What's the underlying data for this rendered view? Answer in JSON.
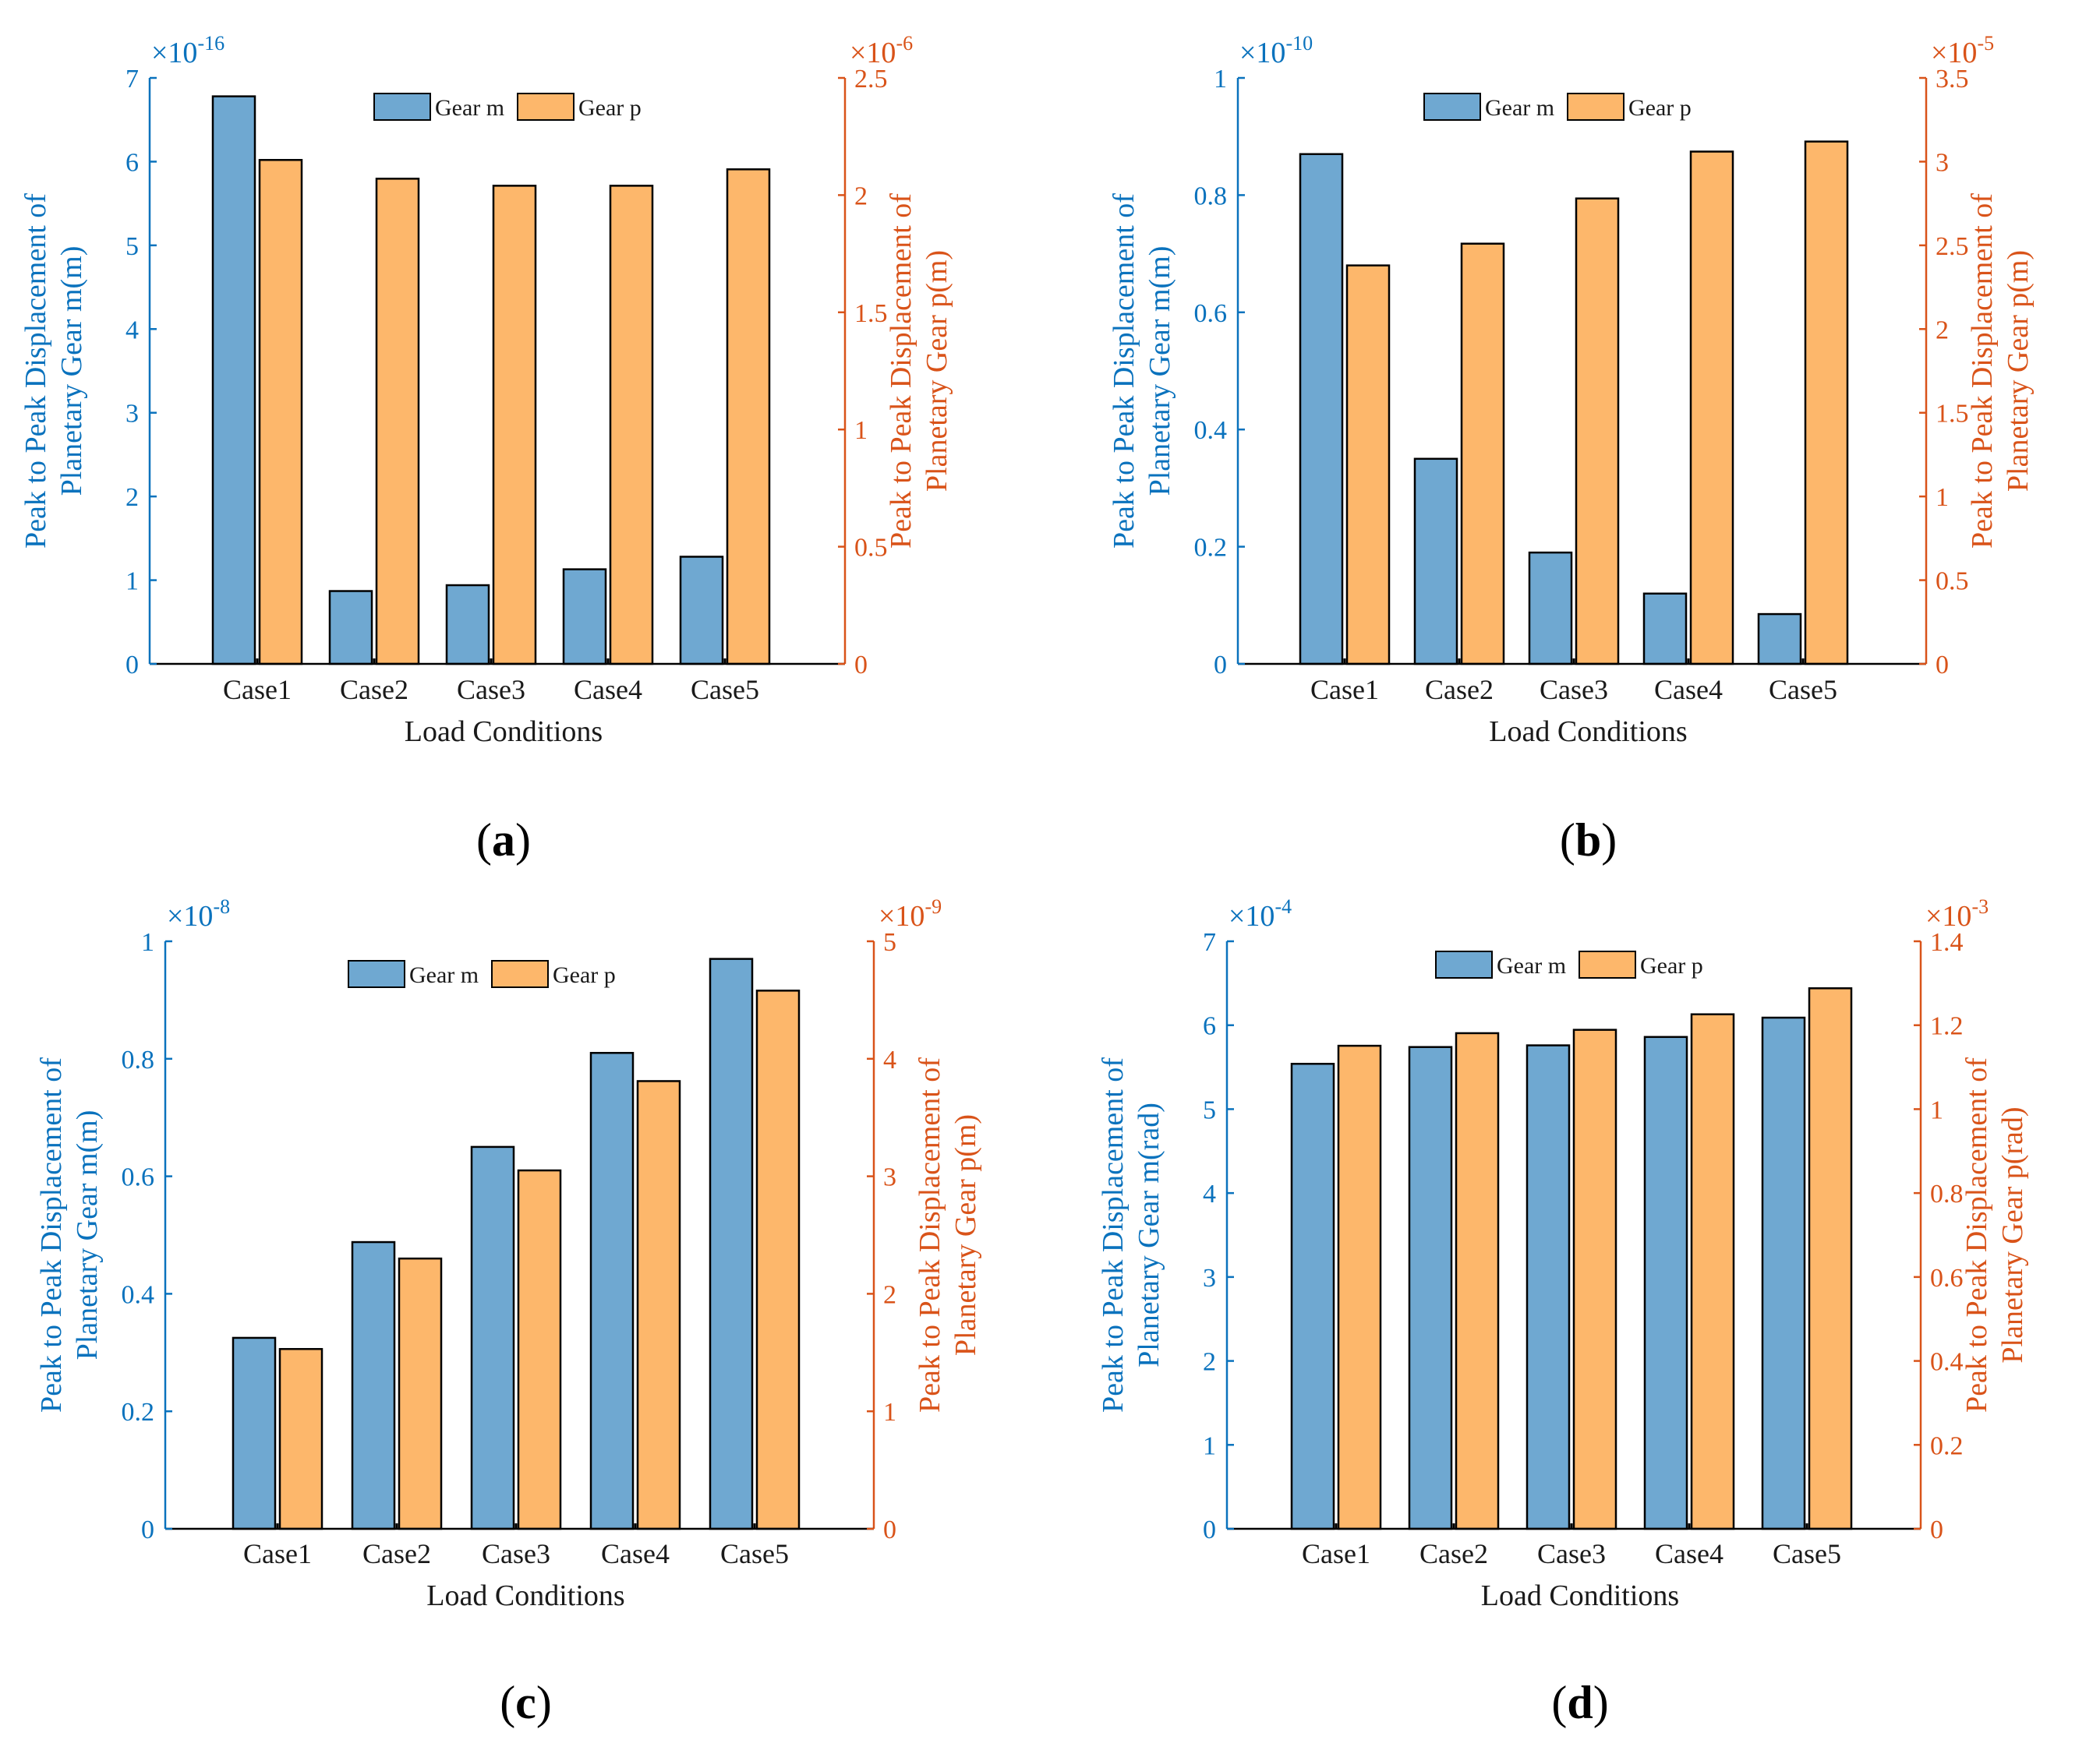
{
  "colors": {
    "gear_m_fill": "#6fa8d1",
    "gear_p_fill": "#fdb76b",
    "left_axis": "#0a72bd",
    "right_axis": "#d95319",
    "text": "#1a1a1a"
  },
  "chart_data": [
    {
      "type": "bar",
      "panel_label": "(a)",
      "panel_letter": "a",
      "categories": [
        "Case1",
        "Case2",
        "Case3",
        "Case4",
        "Case5"
      ],
      "xlabel": "Load Conditions",
      "ylabel_left": [
        "Peak to Peak Displacement of",
        "Planetary Gear m(m)"
      ],
      "ylabel_right": [
        "Peak to Peak Displacement of",
        "Planetary Gear p(m)"
      ],
      "left_multiplier": {
        "base": "×10",
        "exponent": "-16"
      },
      "right_multiplier": {
        "base": "×10",
        "exponent": "-6"
      },
      "left_ylim": [
        0,
        7
      ],
      "left_ticks": [
        "0",
        "1",
        "2",
        "3",
        "4",
        "5",
        "6",
        "7"
      ],
      "right_ylim": [
        0,
        2.5
      ],
      "right_ticks": [
        "0",
        "0.5",
        "1",
        "1.5",
        "2",
        "2.5"
      ],
      "legend": [
        "Gear m",
        "Gear p"
      ],
      "series": [
        {
          "name": "Gear m",
          "axis": "left",
          "values": [
            6.78,
            0.87,
            0.94,
            1.13,
            1.28
          ]
        },
        {
          "name": "Gear p",
          "axis": "right",
          "values": [
            2.15,
            2.07,
            2.04,
            2.04,
            2.11
          ]
        }
      ]
    },
    {
      "type": "bar",
      "panel_label": "(b)",
      "panel_letter": "b",
      "categories": [
        "Case1",
        "Case2",
        "Case3",
        "Case4",
        "Case5"
      ],
      "xlabel": "Load Conditions",
      "ylabel_left": [
        "Peak to Peak Displacement of",
        "Planetary Gear m(m)"
      ],
      "ylabel_right": [
        "Peak to Peak Displacement of",
        "Planetary Gear p(m)"
      ],
      "left_multiplier": {
        "base": "×10",
        "exponent": "-10"
      },
      "right_multiplier": {
        "base": "×10",
        "exponent": "-5"
      },
      "left_ylim": [
        0,
        1
      ],
      "left_ticks": [
        "0",
        "0.2",
        "0.4",
        "0.6",
        "0.8",
        "1"
      ],
      "right_ylim": [
        0,
        3.5
      ],
      "right_ticks": [
        "0",
        "0.5",
        "1",
        "1.5",
        "2",
        "2.5",
        "3",
        "3.5"
      ],
      "legend": [
        "Gear m",
        "Gear p"
      ],
      "series": [
        {
          "name": "Gear m",
          "axis": "left",
          "values": [
            0.87,
            0.35,
            0.19,
            0.12,
            0.085
          ]
        },
        {
          "name": "Gear p",
          "axis": "right",
          "values": [
            2.38,
            2.51,
            2.78,
            3.06,
            3.12
          ]
        }
      ]
    },
    {
      "type": "bar",
      "panel_label": "(c)",
      "panel_letter": "c",
      "categories": [
        "Case1",
        "Case2",
        "Case3",
        "Case4",
        "Case5"
      ],
      "xlabel": "Load Conditions",
      "ylabel_left": [
        "Peak to Peak Displacement of",
        "Planetary Gear m(m)"
      ],
      "ylabel_right": [
        "Peak to Peak Displacement of",
        "Planetary Gear p(m)"
      ],
      "left_multiplier": {
        "base": "×10",
        "exponent": "-8"
      },
      "right_multiplier": {
        "base": "×10",
        "exponent": "-9"
      },
      "left_ylim": [
        0,
        1
      ],
      "left_ticks": [
        "0",
        "0.2",
        "0.4",
        "0.6",
        "0.8",
        "1"
      ],
      "right_ylim": [
        0,
        5
      ],
      "right_ticks": [
        "0",
        "1",
        "2",
        "3",
        "4",
        "5"
      ],
      "legend": [
        "Gear m",
        "Gear p"
      ],
      "series": [
        {
          "name": "Gear m",
          "axis": "left",
          "values": [
            0.325,
            0.488,
            0.65,
            0.81,
            0.97
          ]
        },
        {
          "name": "Gear p",
          "axis": "right",
          "values": [
            1.53,
            2.3,
            3.05,
            3.81,
            4.58
          ]
        }
      ]
    },
    {
      "type": "bar",
      "panel_label": "(d)",
      "panel_letter": "d",
      "categories": [
        "Case1",
        "Case2",
        "Case3",
        "Case4",
        "Case5"
      ],
      "xlabel": "Load Conditions",
      "ylabel_left": [
        "Peak to Peak Displacement of",
        "Planetary Gear m(rad)"
      ],
      "ylabel_right": [
        "Peak to Peak Displacement of",
        "Planetary Gear p(rad)"
      ],
      "left_multiplier": {
        "base": "×10",
        "exponent": "-4"
      },
      "right_multiplier": {
        "base": "×10",
        "exponent": "-3"
      },
      "left_ylim": [
        0,
        7
      ],
      "left_ticks": [
        "0",
        "1",
        "2",
        "3",
        "4",
        "5",
        "6",
        "7"
      ],
      "right_ylim": [
        0,
        1.4
      ],
      "right_ticks": [
        "0",
        "0.2",
        "0.4",
        "0.6",
        "0.8",
        "1",
        "1.2",
        "1.4"
      ],
      "legend": [
        "Gear m",
        "Gear p"
      ],
      "series": [
        {
          "name": "Gear m",
          "axis": "left",
          "values": [
            5.54,
            5.74,
            5.76,
            5.86,
            6.09
          ]
        },
        {
          "name": "Gear p",
          "axis": "right",
          "values": [
            1.151,
            1.181,
            1.189,
            1.226,
            1.288
          ]
        }
      ]
    }
  ]
}
